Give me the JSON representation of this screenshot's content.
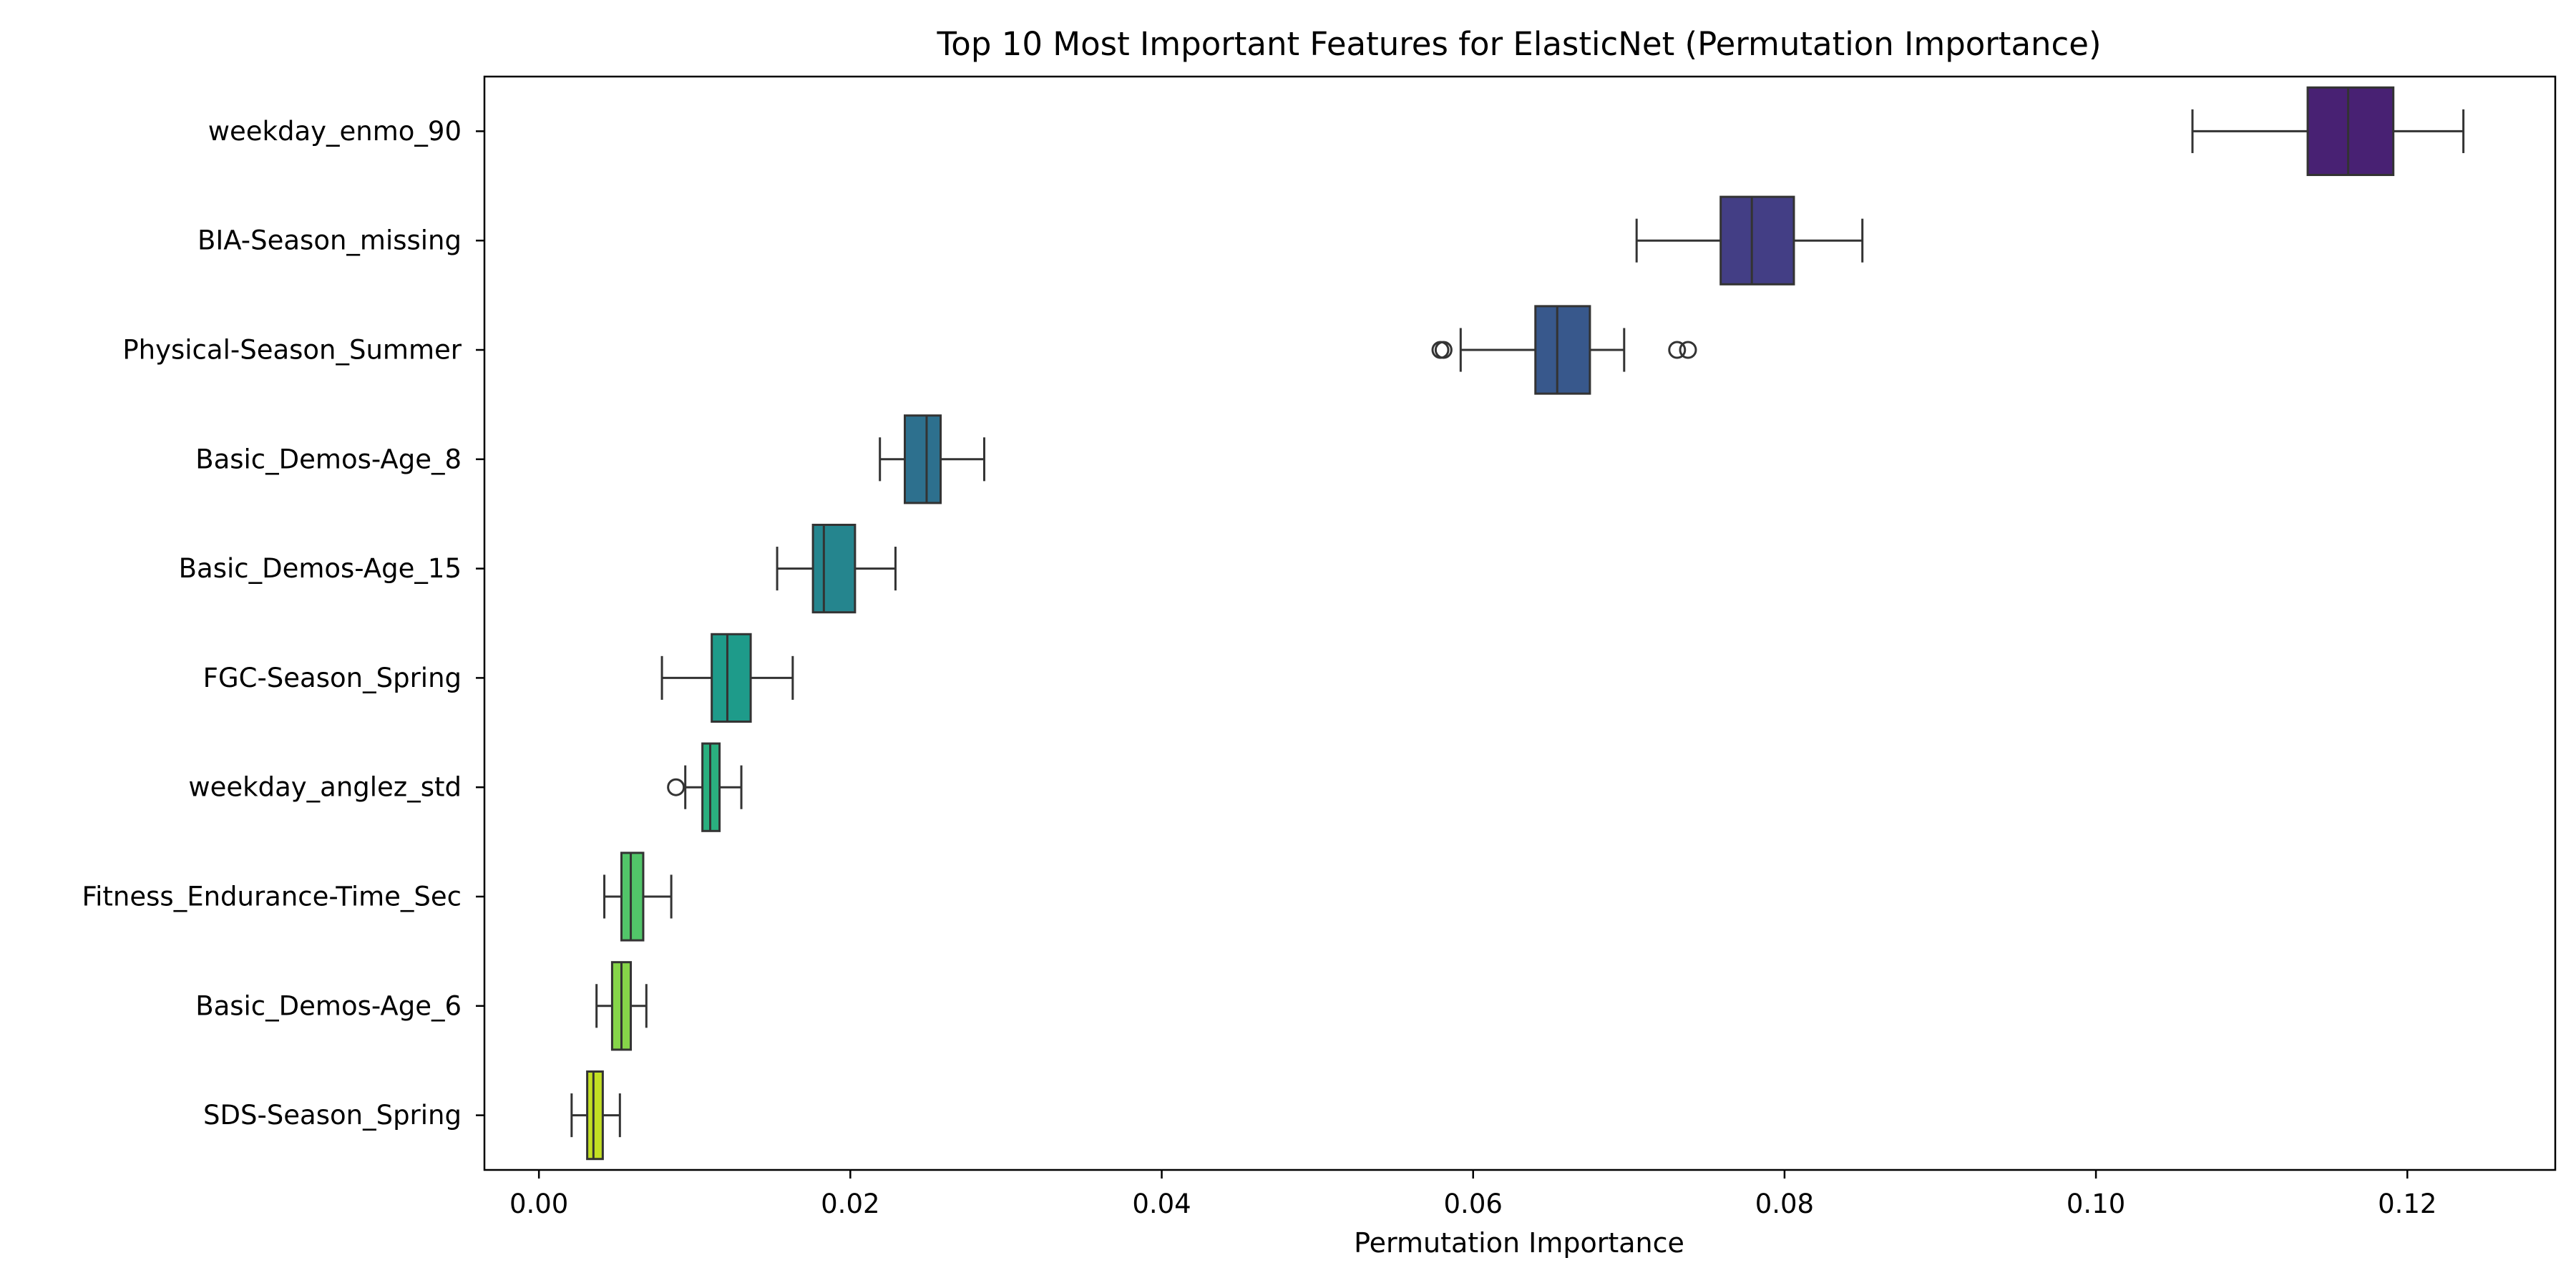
{
  "chart_data": {
    "type": "box",
    "title": "Top 10 Most Important Features for ElasticNet (Permutation Importance)",
    "xlabel": "Permutation Importance",
    "ylabel": "",
    "orientation": "horizontal",
    "xlim": [
      -0.0035,
      0.1295
    ],
    "xticks": [
      0.0,
      0.02,
      0.04,
      0.06,
      0.08,
      0.1,
      0.12
    ],
    "xtick_labels": [
      "0.00",
      "0.02",
      "0.04",
      "0.06",
      "0.08",
      "0.10",
      "0.12"
    ],
    "grid": false,
    "legend": false,
    "categories": [
      "weekday_enmo_90",
      "BIA-Season_missing",
      "Physical-Season_Summer",
      "Basic_Demos-Age_8",
      "Basic_Demos-Age_15",
      "FGC-Season_Spring",
      "weekday_anglez_std",
      "Fitness_Endurance-Time_Sec",
      "Basic_Demos-Age_6",
      "SDS-Season_Spring"
    ],
    "boxes": [
      {
        "feature": "weekday_enmo_90",
        "whislo": 0.1062,
        "q1": 0.1136,
        "med": 0.1162,
        "q3": 0.1191,
        "whishi": 0.1236,
        "fliers": [],
        "color": "#482173"
      },
      {
        "feature": "BIA-Season_missing",
        "whislo": 0.0705,
        "q1": 0.0759,
        "med": 0.0779,
        "q3": 0.0806,
        "whishi": 0.085,
        "fliers": [],
        "color": "#433e85"
      },
      {
        "feature": "Physical-Season_Summer",
        "whislo": 0.0592,
        "q1": 0.064,
        "med": 0.0654,
        "q3": 0.0675,
        "whishi": 0.0697,
        "fliers": [
          0.0579,
          0.0581,
          0.0731,
          0.0738
        ],
        "color": "#38588c"
      },
      {
        "feature": "Basic_Demos-Age_8",
        "whislo": 0.0219,
        "q1": 0.0235,
        "med": 0.0249,
        "q3": 0.0258,
        "whishi": 0.0286,
        "fliers": [],
        "color": "#2d708e"
      },
      {
        "feature": "Basic_Demos-Age_15",
        "whislo": 0.0153,
        "q1": 0.0176,
        "med": 0.0183,
        "q3": 0.0203,
        "whishi": 0.0229,
        "fliers": [],
        "color": "#25858e"
      },
      {
        "feature": "FGC-Season_Spring",
        "whislo": 0.0079,
        "q1": 0.0111,
        "med": 0.0121,
        "q3": 0.0136,
        "whishi": 0.0163,
        "fliers": [],
        "color": "#1e9b8a"
      },
      {
        "feature": "weekday_anglez_std",
        "whislo": 0.0094,
        "q1": 0.0105,
        "med": 0.011,
        "q3": 0.0116,
        "whishi": 0.013,
        "fliers": [
          0.0088
        ],
        "color": "#2ab07f"
      },
      {
        "feature": "Fitness_Endurance-Time_Sec",
        "whislo": 0.0042,
        "q1": 0.0053,
        "med": 0.0059,
        "q3": 0.0067,
        "whishi": 0.0085,
        "fliers": [],
        "color": "#52c569"
      },
      {
        "feature": "Basic_Demos-Age_6",
        "whislo": 0.0037,
        "q1": 0.0047,
        "med": 0.0053,
        "q3": 0.0059,
        "whishi": 0.0069,
        "fliers": [],
        "color": "#86d549"
      },
      {
        "feature": "SDS-Season_Spring",
        "whislo": 0.0021,
        "q1": 0.0031,
        "med": 0.0035,
        "q3": 0.0041,
        "whishi": 0.0052,
        "fliers": [],
        "color": "#c2df23"
      }
    ],
    "line_color": "#333333"
  }
}
